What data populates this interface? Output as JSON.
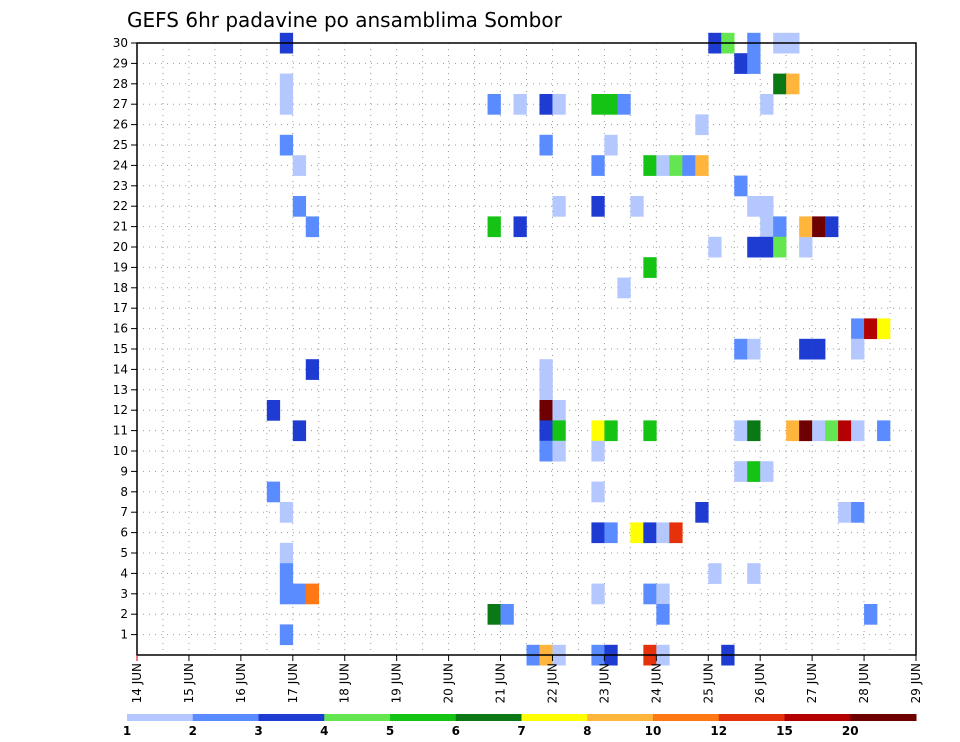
{
  "chart_data": {
    "type": "heatmap",
    "title": "GEFS 6hr padavine po ansamblima Sombor",
    "xlabel": "",
    "ylabel": "",
    "x_ticks": [
      "14 JUN",
      "15 JUN",
      "16 JUN",
      "17 JUN",
      "18 JUN",
      "19 JUN",
      "20 JUN",
      "21 JUN",
      "22 JUN",
      "23 JUN",
      "24 JUN",
      "25 JUN",
      "26 JUN",
      "27 JUN",
      "28 JUN",
      "29 JUN"
    ],
    "y_ticks": [
      "1",
      "2",
      "3",
      "4",
      "5",
      "6",
      "7",
      "8",
      "9",
      "10",
      "11",
      "12",
      "13",
      "14",
      "15",
      "16",
      "17",
      "18",
      "19",
      "20",
      "21",
      "22",
      "23",
      "24",
      "25",
      "26",
      "27",
      "28",
      "29",
      "30"
    ],
    "xlim_days": [
      14,
      29
    ],
    "ylim": [
      0,
      30
    ],
    "grid": true,
    "time_step_hours": 6,
    "legend": {
      "placement": "bottom",
      "labels": [
        "1",
        "2",
        "3",
        "4",
        "5",
        "6",
        "7",
        "8",
        "10",
        "12",
        "15",
        "20"
      ],
      "colors": [
        "#b4c8ff",
        "#5a8cff",
        "#1e3cd2",
        "#64e650",
        "#14c314",
        "#0a7814",
        "#ffff00",
        "#ffb43c",
        "#ff7814",
        "#e6320a",
        "#b40000",
        "#6e0000"
      ]
    },
    "cells_description": "Each cell = [day (fractional, 0.25 = 6hr), ensemble member, color class index 0-11]",
    "cells": [
      [
        16.75,
        30,
        2
      ],
      [
        16.75,
        28,
        0
      ],
      [
        16.75,
        27,
        0
      ],
      [
        16.75,
        25,
        1
      ],
      [
        17.0,
        24,
        0
      ],
      [
        17.0,
        22,
        1
      ],
      [
        17.25,
        21,
        1
      ],
      [
        16.75,
        5,
        0
      ],
      [
        16.75,
        4,
        1
      ],
      [
        16.75,
        1,
        1
      ],
      [
        16.5,
        12,
        2
      ],
      [
        17.0,
        11,
        2
      ],
      [
        16.5,
        8,
        1
      ],
      [
        16.75,
        7,
        0
      ],
      [
        16.75,
        3,
        1
      ],
      [
        17.0,
        3,
        1
      ],
      [
        17.25,
        3,
        8
      ],
      [
        17.25,
        14,
        2
      ],
      [
        20.75,
        27,
        1
      ],
      [
        21.25,
        27,
        0
      ],
      [
        20.75,
        21,
        4
      ],
      [
        21.25,
        21,
        2
      ],
      [
        20.75,
        2,
        5
      ],
      [
        21.0,
        2,
        1
      ],
      [
        21.75,
        27,
        2
      ],
      [
        22.0,
        27,
        0
      ],
      [
        21.75,
        25,
        1
      ],
      [
        22.0,
        22,
        0
      ],
      [
        21.75,
        14,
        0
      ],
      [
        21.75,
        13,
        0
      ],
      [
        21.75,
        12,
        11
      ],
      [
        22.0,
        12,
        0
      ],
      [
        21.75,
        11,
        2
      ],
      [
        22.0,
        11,
        4
      ],
      [
        21.75,
        10,
        1
      ],
      [
        22.0,
        10,
        0
      ],
      [
        21.5,
        0,
        1
      ],
      [
        21.75,
        0,
        7
      ],
      [
        22.0,
        0,
        0
      ],
      [
        22.75,
        27,
        4
      ],
      [
        23.0,
        27,
        4
      ],
      [
        23.25,
        27,
        1
      ],
      [
        23.0,
        25,
        0
      ],
      [
        22.75,
        24,
        1
      ],
      [
        22.75,
        22,
        2
      ],
      [
        23.5,
        22,
        0
      ],
      [
        23.25,
        18,
        0
      ],
      [
        22.75,
        11,
        6
      ],
      [
        23.0,
        11,
        4
      ],
      [
        22.75,
        10,
        0
      ],
      [
        22.75,
        8,
        0
      ],
      [
        22.75,
        6,
        2
      ],
      [
        23.0,
        6,
        1
      ],
      [
        22.75,
        3,
        0
      ],
      [
        22.75,
        0,
        1
      ],
      [
        23.0,
        0,
        2
      ],
      [
        23.75,
        24,
        4
      ],
      [
        24.0,
        24,
        0
      ],
      [
        24.25,
        24,
        3
      ],
      [
        24.5,
        24,
        1
      ],
      [
        24.75,
        24,
        7
      ],
      [
        23.75,
        19,
        4
      ],
      [
        23.75,
        11,
        4
      ],
      [
        23.5,
        6,
        6
      ],
      [
        23.75,
        6,
        2
      ],
      [
        24.0,
        6,
        0
      ],
      [
        24.25,
        6,
        9
      ],
      [
        23.75,
        3,
        1
      ],
      [
        24.0,
        3,
        0
      ],
      [
        24.0,
        2,
        1
      ],
      [
        23.75,
        0,
        9
      ],
      [
        24.0,
        0,
        0
      ],
      [
        24.75,
        26,
        0
      ],
      [
        25.0,
        20,
        0
      ],
      [
        25.0,
        4,
        0
      ],
      [
        24.75,
        7,
        2
      ],
      [
        25.25,
        0,
        2
      ],
      [
        25.0,
        30,
        2
      ],
      [
        25.25,
        30,
        3
      ],
      [
        25.75,
        30,
        1
      ],
      [
        26.25,
        30,
        0
      ],
      [
        26.5,
        30,
        0
      ],
      [
        25.5,
        29,
        2
      ],
      [
        25.75,
        29,
        1
      ],
      [
        26.25,
        28,
        5
      ],
      [
        26.5,
        28,
        7
      ],
      [
        26.0,
        27,
        0
      ],
      [
        25.5,
        23,
        1
      ],
      [
        25.75,
        22,
        0
      ],
      [
        26.0,
        22,
        0
      ],
      [
        26.0,
        21,
        0
      ],
      [
        26.25,
        21,
        1
      ],
      [
        25.75,
        20,
        2
      ],
      [
        26.0,
        20,
        2
      ],
      [
        26.25,
        20,
        3
      ],
      [
        26.75,
        20,
        0
      ],
      [
        26.75,
        21,
        7
      ],
      [
        27.0,
        21,
        11
      ],
      [
        27.25,
        21,
        2
      ],
      [
        27.75,
        16,
        1
      ],
      [
        28.0,
        16,
        10
      ],
      [
        28.25,
        16,
        6
      ],
      [
        25.5,
        15,
        1
      ],
      [
        25.75,
        15,
        0
      ],
      [
        26.75,
        15,
        2
      ],
      [
        27.0,
        15,
        2
      ],
      [
        27.75,
        15,
        0
      ],
      [
        25.5,
        11,
        0
      ],
      [
        25.75,
        11,
        5
      ],
      [
        26.5,
        11,
        7
      ],
      [
        26.75,
        11,
        11
      ],
      [
        27.0,
        11,
        0
      ],
      [
        27.25,
        11,
        3
      ],
      [
        27.5,
        11,
        10
      ],
      [
        27.75,
        11,
        0
      ],
      [
        28.25,
        11,
        1
      ],
      [
        25.5,
        9,
        0
      ],
      [
        25.75,
        9,
        4
      ],
      [
        26.0,
        9,
        0
      ],
      [
        27.5,
        7,
        0
      ],
      [
        27.75,
        7,
        1
      ],
      [
        25.75,
        4,
        0
      ],
      [
        28.0,
        2,
        1
      ]
    ]
  }
}
